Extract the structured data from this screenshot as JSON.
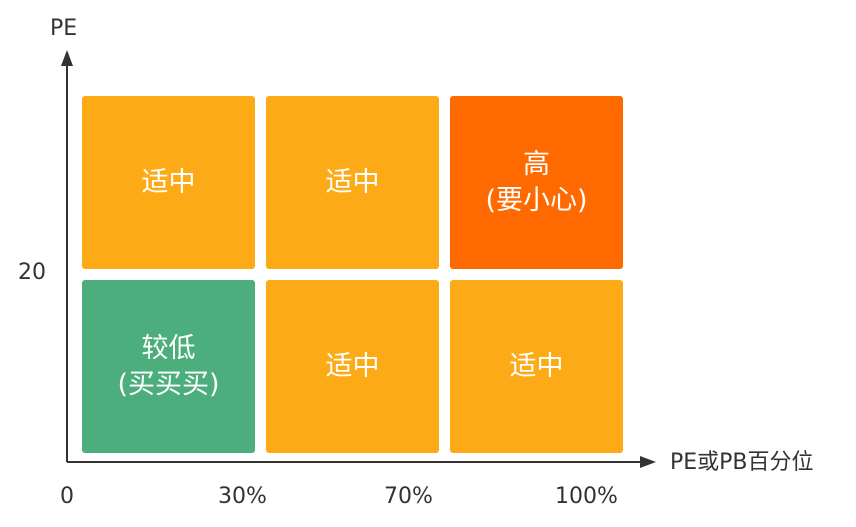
{
  "axes": {
    "y_label": "PE",
    "y_tick": "20",
    "x_label": "PE或PB百分位",
    "x_ticks": [
      "0",
      "30%",
      "70%",
      "100%"
    ]
  },
  "colors": {
    "moderate": "#FCAB16",
    "high": "#FF6A00",
    "low": "#4BAE7C",
    "axis": "#333333"
  },
  "grid": {
    "top_row": [
      {
        "line1": "适中",
        "line2": "",
        "level": "moderate"
      },
      {
        "line1": "适中",
        "line2": "",
        "level": "moderate"
      },
      {
        "line1": "高",
        "line2": "(要小心)",
        "level": "high"
      }
    ],
    "bottom_row": [
      {
        "line1": "较低",
        "line2": "(买买买)",
        "level": "low"
      },
      {
        "line1": "适中",
        "line2": "",
        "level": "moderate"
      },
      {
        "line1": "适中",
        "line2": "",
        "level": "moderate"
      }
    ]
  }
}
